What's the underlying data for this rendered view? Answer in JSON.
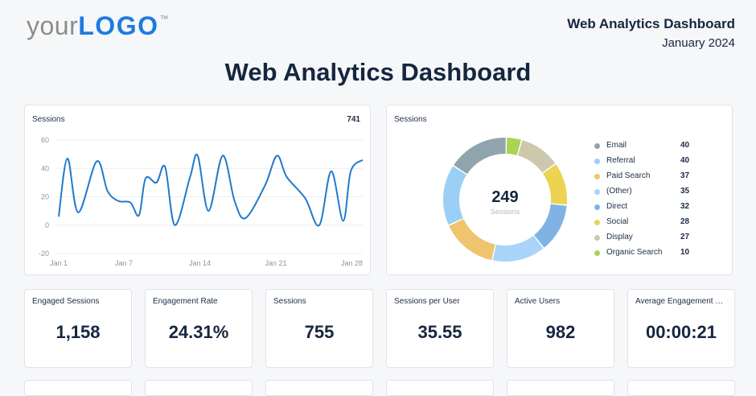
{
  "header": {
    "logo_prefix": "your",
    "logo_brand": "LOGO",
    "logo_tm": "™",
    "report_title": "Web Analytics Dashboard",
    "report_date": "January 2024"
  },
  "page_title": "Web Analytics Dashboard",
  "colors": {
    "accent": "#1f7ae0",
    "line": "#1f7acb"
  },
  "line_card": {
    "label": "Sessions",
    "total": "741"
  },
  "donut_card": {
    "label": "Sessions",
    "center_value": "249",
    "center_label": "Sessions"
  },
  "kpis": [
    {
      "label": "Engaged Sessions",
      "value": "1,158"
    },
    {
      "label": "Engagement Rate",
      "value": "24.31%"
    },
    {
      "label": "Sessions",
      "value": "755"
    },
    {
      "label": "Sessions per User",
      "value": "35.55"
    },
    {
      "label": "Active Users",
      "value": "982"
    },
    {
      "label": "Average Engagement Ti...",
      "value": "00:00:21"
    }
  ],
  "chart_data": [
    {
      "type": "line",
      "title": "Sessions",
      "xlabel": "",
      "ylabel": "",
      "ylim": [
        -20,
        60
      ],
      "yticks": [
        60,
        40,
        20,
        0,
        -20
      ],
      "xticks": [
        {
          "day": 1,
          "label": "Jan 1"
        },
        {
          "day": 7,
          "label": "Jan 7"
        },
        {
          "day": 14,
          "label": "Jan 14"
        },
        {
          "day": 21,
          "label": "Jan 21"
        },
        {
          "day": 28,
          "label": "Jan 28"
        }
      ],
      "grid": true,
      "series": [
        {
          "points": [
            [
              1,
              6
            ],
            [
              1.8,
              47
            ],
            [
              2.8,
              9
            ],
            [
              4.5,
              45
            ],
            [
              5.5,
              24
            ],
            [
              6.5,
              17
            ],
            [
              7.6,
              16
            ],
            [
              8.4,
              7
            ],
            [
              9.0,
              33
            ],
            [
              10.0,
              30
            ],
            [
              10.8,
              41
            ],
            [
              11.7,
              0
            ],
            [
              13.1,
              34
            ],
            [
              13.8,
              49
            ],
            [
              14.8,
              10
            ],
            [
              16.1,
              49
            ],
            [
              17.2,
              17
            ],
            [
              18.2,
              5
            ],
            [
              20.0,
              28
            ],
            [
              21.1,
              49
            ],
            [
              22.0,
              34
            ],
            [
              23.7,
              19
            ],
            [
              25.0,
              0
            ],
            [
              26.1,
              38
            ],
            [
              27.2,
              3
            ],
            [
              27.9,
              38
            ],
            [
              29.0,
              46
            ]
          ]
        }
      ]
    },
    {
      "type": "pie",
      "title": "Sessions",
      "legend_position": "right",
      "slices": [
        {
          "name": "Email",
          "value": 40,
          "color": "#90a4ae"
        },
        {
          "name": "Referral",
          "value": 40,
          "color": "#9ccff5"
        },
        {
          "name": "Paid Search",
          "value": 37,
          "color": "#f0c36e"
        },
        {
          "name": "(Other)",
          "value": 35,
          "color": "#a8d4fa"
        },
        {
          "name": "Direct",
          "value": 32,
          "color": "#7fb3e3"
        },
        {
          "name": "Social",
          "value": 28,
          "color": "#ecd352"
        },
        {
          "name": "Display",
          "value": 27,
          "color": "#cdc8ab"
        },
        {
          "name": "Organic Search",
          "value": 10,
          "color": "#a9d455"
        }
      ],
      "donut_order": [
        "Organic Search",
        "Display",
        "Social",
        "Direct",
        "(Other)",
        "Paid Search",
        "Referral",
        "Email"
      ]
    }
  ]
}
